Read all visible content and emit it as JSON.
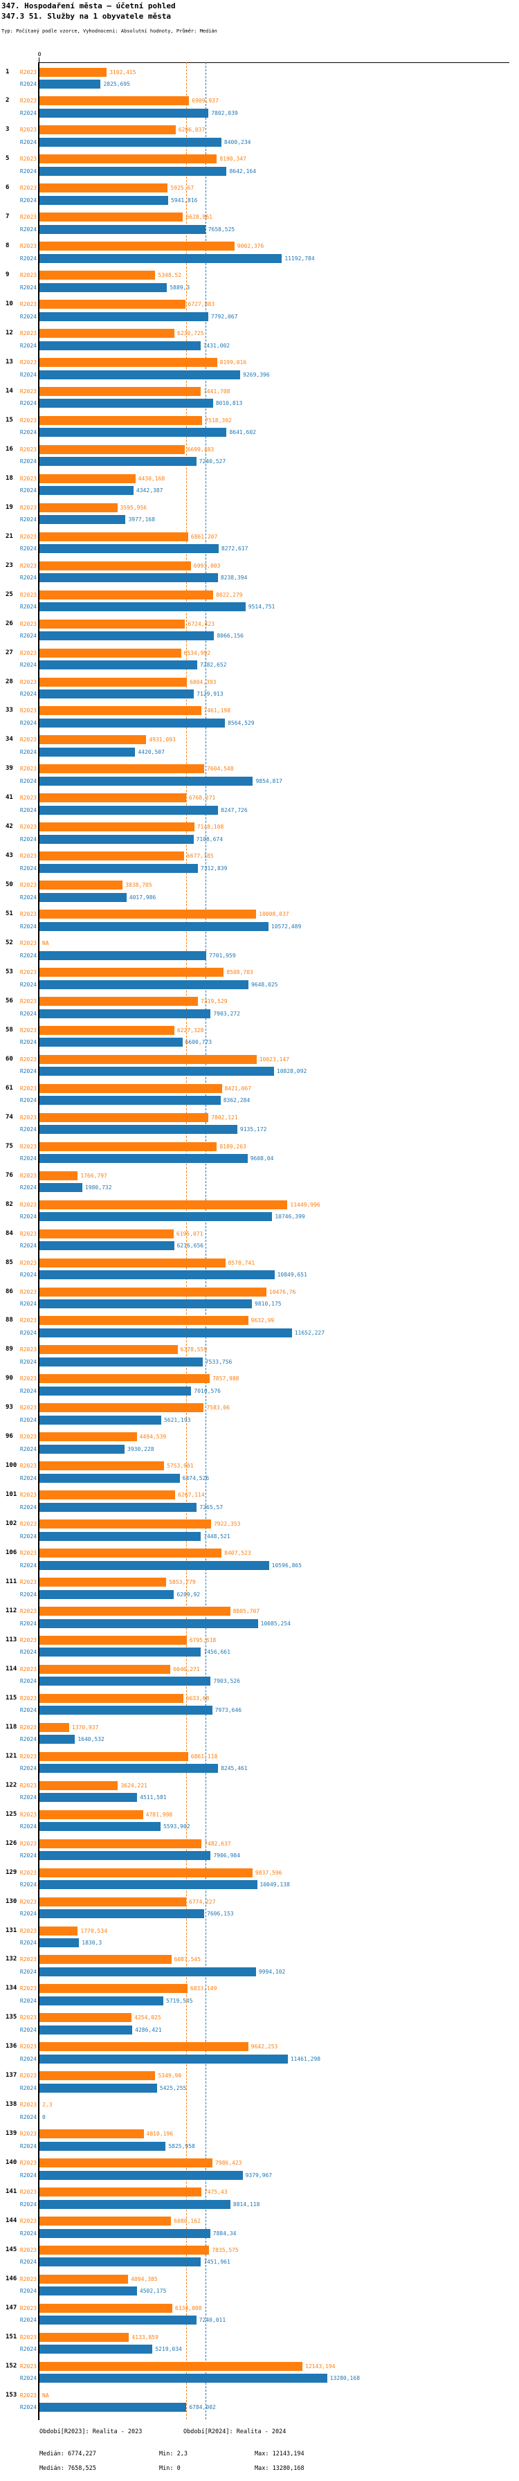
{
  "header": {
    "title": "347. Hospodaření města – účetní pohled",
    "subtitle": "347.3 51. Služby na 1 obyvatele města",
    "meta": "Typ: Počítaný podle vzorce, Vyhodnocení: Absolutní hodnoty, Průměr: Medián"
  },
  "axis": {
    "zero_label": "0"
  },
  "chart_data": {
    "type": "bar",
    "orientation": "horizontal",
    "title": "347.3 51. Služby na 1 obyvatele města",
    "xlim": [
      0,
      21700
    ],
    "grid": "median-lines-only",
    "legend_position": "bottom",
    "medians": {
      "R2023": 6774.227,
      "R2024": 7658.525
    },
    "categories": [
      "1",
      "2",
      "3",
      "5",
      "6",
      "7",
      "8",
      "9",
      "10",
      "12",
      "13",
      "14",
      "15",
      "16",
      "18",
      "19",
      "21",
      "23",
      "25",
      "26",
      "27",
      "28",
      "33",
      "34",
      "39",
      "41",
      "42",
      "43",
      "50",
      "51",
      "52",
      "53",
      "56",
      "58",
      "60",
      "61",
      "74",
      "75",
      "76",
      "82",
      "84",
      "85",
      "86",
      "88",
      "89",
      "90",
      "93",
      "96",
      "100",
      "101",
      "102",
      "106",
      "111",
      "112",
      "113",
      "114",
      "115",
      "118",
      "121",
      "122",
      "125",
      "126",
      "129",
      "130",
      "131",
      "132",
      "134",
      "135",
      "136",
      "137",
      "138",
      "139",
      "140",
      "141",
      "144",
      "145",
      "146",
      "147",
      "151",
      "152",
      "153"
    ],
    "series": [
      {
        "name": "R2023",
        "color": "#FF7F0E",
        "values": [
          3102.415,
          6909.937,
          6286.037,
          8190.347,
          5925.67,
          6628.861,
          9002.376,
          5348.52,
          6727.883,
          6230.725,
          8199.016,
          7441.708,
          7518.392,
          6699.483,
          4430.168,
          3595.956,
          6861.207,
          6993.003,
          8022.279,
          6724.423,
          6534.992,
          6804.393,
          7461.198,
          4931.093,
          7604.548,
          6768.271,
          7148.108,
          6677.185,
          3838.705,
          10008.037,
          null,
          8508.703,
          7319.529,
          6227.328,
          10023.147,
          8421.067,
          7802.121,
          8189.263,
          1766.797,
          11449.996,
          6195.071,
          8578.741,
          10476.76,
          9632.99,
          6378.559,
          7857.988,
          7583.06,
          4494.539,
          5753.981,
          6267.114,
          7922.353,
          8407.523,
          5853.779,
          8805.707,
          6795.618,
          6046.271,
          6633.68,
          1370.937,
          6861.118,
          3624.221,
          4781.998,
          7482.637,
          9837.596,
          6774.227,
          1770.534,
          6087.545,
          6833.149,
          4254.025,
          9642.253,
          5349.98,
          2.3,
          4810.196,
          7986.423,
          7475.43,
          6080.162,
          7835.575,
          4094.385,
          6134.808,
          4133.859,
          12143.194,
          null
        ],
        "labels": [
          "3102,415",
          "6909,937",
          "6286,037",
          "8190,347",
          "5925,67",
          "6628,861",
          "9002,376",
          "5348,52",
          "6727,883",
          "6230,725",
          "8199,016",
          "7441,708",
          "7518,392",
          "6699,483",
          "4430,168",
          "3595,956",
          "6861,207",
          "6993,003",
          "8022,279",
          "6724,423",
          "6534,992",
          "6804,393",
          "7461,198",
          "4931,093",
          "7604,548",
          "6768,271",
          "7148,108",
          "6677,185",
          "3838,705",
          "10008,037",
          "NA",
          "8508,703",
          "7319,529",
          "6227,328",
          "10023,147",
          "8421,067",
          "7802,121",
          "8189,263",
          "1766,797",
          "11449,996",
          "6195,071",
          "8578,741",
          "10476,76",
          "9632,99",
          "6378,559",
          "7857,988",
          "7583,06",
          "4494,539",
          "5753,981",
          "6267,114",
          "7922,353",
          "8407,523",
          "5853,779",
          "8805,707",
          "6795,618",
          "6046,271",
          "6633,68",
          "1370,937",
          "6861,118",
          "3624,221",
          "4781,998",
          "7482,637",
          "9837,596",
          "6774,227",
          "1770,534",
          "6087,545",
          "6833,149",
          "4254,025",
          "9642,253",
          "5349,98",
          "2,3",
          "4810,196",
          "7986,423",
          "7475,43",
          "6080,162",
          "7835,575",
          "4094,385",
          "6134,808",
          "4133,859",
          "12143,194",
          "NA"
        ]
      },
      {
        "name": "R2024",
        "color": "#1F77B4",
        "values": [
          2825.695,
          7802.039,
          8400.234,
          8642.164,
          5941.816,
          7658.525,
          11192.784,
          5889.3,
          7792.067,
          7431.002,
          9269.396,
          8010.813,
          8641.602,
          7240.527,
          4342.387,
          3977.168,
          8272.617,
          8238.394,
          9514.751,
          8066.156,
          7282.652,
          7129.913,
          8564.529,
          4420.507,
          9854.817,
          8247.726,
          7108.674,
          7312.839,
          4017.986,
          10572.489,
          7701.959,
          9648.025,
          7903.272,
          6600.773,
          10828.092,
          8362.284,
          9135.172,
          9608.04,
          1980.732,
          10746.399,
          6216.656,
          10849.651,
          9810.175,
          11652.227,
          7533.756,
          7010.576,
          5621.193,
          3930.228,
          6474.526,
          7265.57,
          7448.521,
          10596.865,
          6209.92,
          10085.254,
          7456.661,
          7903.526,
          7973.646,
          1640.532,
          8245.461,
          4511.581,
          5593.902,
          7906.984,
          10049.138,
          7606.153,
          1830.3,
          9994.102,
          5719.545,
          4286.421,
          11461.298,
          5425.255,
          0,
          5825.958,
          9379.967,
          8814.118,
          7884.34,
          7451.961,
          4502.175,
          7240.011,
          5219.034,
          13280.168,
          6784.002
        ],
        "labels": [
          "2825,695",
          "7802,039",
          "8400,234",
          "8642,164",
          "5941,816",
          "7658,525",
          "11192,784",
          "5889,3",
          "7792,067",
          "7431,002",
          "9269,396",
          "8010,813",
          "8641,602",
          "7240,527",
          "4342,387",
          "3977,168",
          "8272,617",
          "8238,394",
          "9514,751",
          "8066,156",
          "7282,652",
          "7129,913",
          "8564,529",
          "4420,507",
          "9854,817",
          "8247,726",
          "7108,674",
          "7312,839",
          "4017,986",
          "10572,489",
          "7701,959",
          "9648,025",
          "7903,272",
          "6600,773",
          "10828,092",
          "8362,284",
          "9135,172",
          "9608,04",
          "1980,732",
          "10746,399",
          "6216,656",
          "10849,651",
          "9810,175",
          "11652,227",
          "7533,756",
          "7010,576",
          "5621,193",
          "3930,228",
          "6474,526",
          "7265,57",
          "7448,521",
          "10596,865",
          "6209,92",
          "10085,254",
          "7456,661",
          "7903,526",
          "7973,646",
          "1640,532",
          "8245,461",
          "4511,581",
          "5593,902",
          "7906,984",
          "10049,138",
          "7606,153",
          "1830,3",
          "9994,102",
          "5719,545",
          "4286,421",
          "11461,298",
          "5425,255",
          "0",
          "5825,958",
          "9379,967",
          "8814,118",
          "7884,34",
          "7451,961",
          "4502,175",
          "7240,011",
          "5219,034",
          "13280,168",
          "6784,002"
        ]
      }
    ]
  },
  "footer": {
    "legend_r2023": "Období[R2023]: Realita - 2023",
    "legend_r2024": "Období[R2024]: Realita - 2024",
    "stats_r2023": {
      "median": "Medián: 6774,227",
      "min": "Min: 2,3",
      "max": "Max: 12143,194"
    },
    "stats_r2024": {
      "median": "Medián: 7658,525",
      "min": "Min: 0",
      "max": "Max: 13280,168"
    }
  }
}
